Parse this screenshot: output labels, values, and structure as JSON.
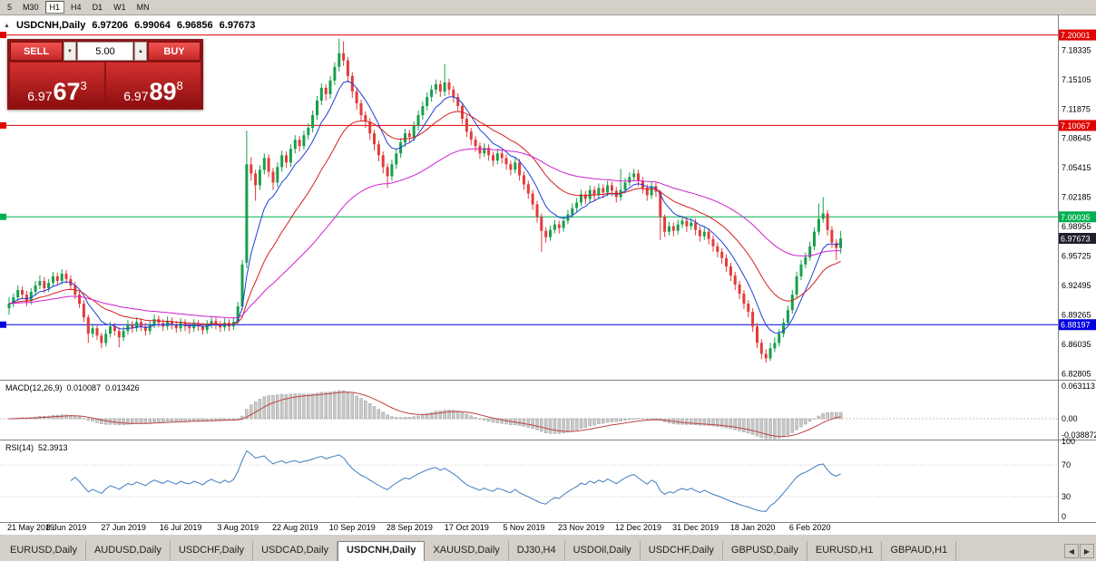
{
  "toolbar": {
    "timeframes": [
      {
        "label": "5",
        "active": false
      },
      {
        "label": "M30",
        "active": false
      },
      {
        "label": "H1",
        "active": true
      },
      {
        "label": "H4",
        "active": false
      },
      {
        "label": "D1",
        "active": false
      },
      {
        "label": "W1",
        "active": false
      },
      {
        "label": "MN",
        "active": false
      }
    ]
  },
  "icons": {
    "expand_marker": "▲",
    "volume_decrease": "▼",
    "volume_increase": "▲",
    "tab_scroll_left": "◀",
    "tab_scroll_right": "▶"
  },
  "chart_header": {
    "symbol": "USDCNH,Daily",
    "open": "6.97206",
    "high": "6.99064",
    "low": "6.96856",
    "close": "6.97673"
  },
  "trade_panel": {
    "sell_label": "SELL",
    "buy_label": "BUY",
    "volume": "5.00",
    "sell_price_big": "6.97",
    "sell_price_mid": "67",
    "sell_price_sup": "3",
    "buy_price_big": "6.97",
    "buy_price_mid": "89",
    "buy_price_sup": "8"
  },
  "indicators": {
    "macd_label": "MACD(12,26,9)",
    "macd_value1": "0.010087",
    "macd_value2": "0.013426",
    "rsi_label": "RSI(14)",
    "rsi_value": "52.3913"
  },
  "axes": {
    "price_labels": [
      "7.18335",
      "7.15105",
      "7.11875",
      "7.08645",
      "7.05415",
      "7.02185",
      "6.98955",
      "6.95725",
      "6.92495",
      "6.89265",
      "6.86035",
      "6.82805"
    ],
    "macd_labels": [
      "0.063113",
      "0.00",
      "-0.038872"
    ],
    "rsi_labels": [
      "100",
      "70",
      "30",
      "0"
    ],
    "dates": [
      "21 May 2019",
      "8 Jun 2019",
      "27 Jun 2019",
      "16 Jul 2019",
      "3 Aug 2019",
      "22 Aug 2019",
      "10 Sep 2019",
      "28 Sep 2019",
      "17 Oct 2019",
      "5 Nov 2019",
      "23 Nov 2019",
      "12 Dec 2019",
      "31 Dec 2019",
      "18 Jan 2020",
      "6 Feb 2020"
    ]
  },
  "hlines": [
    {
      "price": "7.20001",
      "value": 7.20001,
      "color": "#e00000"
    },
    {
      "price": "7.10067",
      "value": 7.10067,
      "color": "#e00000"
    },
    {
      "price": "7.00035",
      "value": 7.00035,
      "color": "#00b050"
    },
    {
      "price": "6.88197",
      "value": 6.88197,
      "color": "#0000e0"
    }
  ],
  "current_price": {
    "price": "6.97673",
    "value": 6.97673,
    "color": "#20202c"
  },
  "tabs": {
    "items": [
      {
        "label": "EURUSD,Daily",
        "active": false
      },
      {
        "label": "AUDUSD,Daily",
        "active": false
      },
      {
        "label": "USDCHF,Daily",
        "active": false
      },
      {
        "label": "USDCAD,Daily",
        "active": false
      },
      {
        "label": "USDCNH,Daily",
        "active": true
      },
      {
        "label": "XAUUSD,Daily",
        "active": false
      },
      {
        "label": "DJ30,H4",
        "active": false
      },
      {
        "label": "USDOil,Daily",
        "active": false
      },
      {
        "label": "USDCHF,Daily",
        "active": false
      },
      {
        "label": "GBPUSD,Daily",
        "active": false
      },
      {
        "label": "EURUSD,H1",
        "active": false
      },
      {
        "label": "GBPAUD,H1",
        "active": false
      }
    ]
  },
  "chart_data": {
    "type": "candlestick",
    "symbol": "USDCNH",
    "timeframe": "Daily",
    "price_range": {
      "top": 7.2185,
      "bottom": 6.8235
    },
    "x_label_every": 13,
    "bull_color": "#16a04a",
    "bear_color": "#e23b3b",
    "moving_averages": [
      {
        "period": 8,
        "type": "ema",
        "color": "#1f3fd8"
      },
      {
        "period": 21,
        "type": "ema",
        "color": "#d42020"
      },
      {
        "period": 55,
        "type": "ema",
        "color": "#d020d0"
      }
    ],
    "macd": {
      "fast": 12,
      "slow": 26,
      "signal": 9,
      "hist_color": "#c9c9c9",
      "signal_color": "#c04040"
    },
    "rsi": {
      "period": 14,
      "color": "#3f7cbf",
      "levels": [
        70,
        30
      ]
    },
    "candles": [
      [
        6.9,
        6.912,
        6.893,
        6.905
      ],
      [
        6.905,
        6.916,
        6.901,
        6.912
      ],
      [
        6.912,
        6.925,
        6.908,
        6.92
      ],
      [
        6.92,
        6.924,
        6.91,
        6.915
      ],
      [
        6.915,
        6.919,
        6.902,
        6.908
      ],
      [
        6.908,
        6.922,
        6.904,
        6.918
      ],
      [
        6.918,
        6.93,
        6.914,
        6.925
      ],
      [
        6.925,
        6.936,
        6.921,
        6.93
      ],
      [
        6.93,
        6.934,
        6.917,
        6.922
      ],
      [
        6.922,
        6.932,
        6.918,
        6.928
      ],
      [
        6.928,
        6.94,
        6.924,
        6.935
      ],
      [
        6.935,
        6.939,
        6.925,
        6.93
      ],
      [
        6.93,
        6.943,
        6.926,
        6.938
      ],
      [
        6.938,
        6.942,
        6.927,
        6.932
      ],
      [
        6.932,
        6.936,
        6.92,
        6.925
      ],
      [
        6.925,
        6.929,
        6.91,
        6.915
      ],
      [
        6.915,
        6.919,
        6.9,
        6.905
      ],
      [
        6.905,
        6.909,
        6.885,
        6.89
      ],
      [
        6.89,
        6.893,
        6.862,
        6.872
      ],
      [
        6.872,
        6.883,
        6.868,
        6.878
      ],
      [
        6.878,
        6.881,
        6.865,
        6.87
      ],
      [
        6.87,
        6.873,
        6.856,
        6.862
      ],
      [
        6.862,
        6.877,
        6.858,
        6.872
      ],
      [
        6.872,
        6.885,
        6.868,
        6.88
      ],
      [
        6.88,
        6.884,
        6.87,
        6.875
      ],
      [
        6.875,
        6.879,
        6.857,
        6.868
      ],
      [
        6.868,
        6.88,
        6.864,
        6.875
      ],
      [
        6.875,
        6.887,
        6.871,
        6.882
      ],
      [
        6.882,
        6.886,
        6.873,
        6.878
      ],
      [
        6.878,
        6.89,
        6.874,
        6.885
      ],
      [
        6.885,
        6.889,
        6.875,
        6.88
      ],
      [
        6.88,
        6.884,
        6.87,
        6.875
      ],
      [
        6.875,
        6.887,
        6.871,
        6.882
      ],
      [
        6.882,
        6.893,
        6.878,
        6.888
      ],
      [
        6.888,
        6.892,
        6.879,
        6.884
      ],
      [
        6.884,
        6.888,
        6.875,
        6.88
      ],
      [
        6.88,
        6.891,
        6.876,
        6.886
      ],
      [
        6.886,
        6.89,
        6.877,
        6.882
      ],
      [
        6.882,
        6.886,
        6.873,
        6.878
      ],
      [
        6.878,
        6.889,
        6.874,
        6.884
      ],
      [
        6.884,
        6.888,
        6.875,
        6.88
      ],
      [
        6.88,
        6.884,
        6.872,
        6.878
      ],
      [
        6.878,
        6.888,
        6.874,
        6.883
      ],
      [
        6.883,
        6.887,
        6.875,
        6.88
      ],
      [
        6.88,
        6.884,
        6.871,
        6.876
      ],
      [
        6.876,
        6.887,
        6.872,
        6.882
      ],
      [
        6.882,
        6.891,
        6.878,
        6.886
      ],
      [
        6.886,
        6.89,
        6.877,
        6.882
      ],
      [
        6.882,
        6.886,
        6.874,
        6.879
      ],
      [
        6.879,
        6.889,
        6.875,
        6.884
      ],
      [
        6.884,
        6.888,
        6.875,
        6.88
      ],
      [
        6.88,
        6.89,
        6.876,
        6.885
      ],
      [
        6.885,
        6.907,
        6.882,
        6.902
      ],
      [
        6.902,
        6.953,
        6.898,
        6.948
      ],
      [
        6.95,
        7.095,
        6.944,
        7.058
      ],
      [
        7.058,
        7.066,
        7.04,
        7.048
      ],
      [
        7.048,
        7.052,
        7.018,
        7.035
      ],
      [
        7.035,
        7.057,
        7.03,
        7.052
      ],
      [
        7.052,
        7.07,
        7.047,
        7.065
      ],
      [
        7.065,
        7.069,
        7.044,
        7.05
      ],
      [
        7.05,
        7.054,
        7.03,
        7.038
      ],
      [
        7.038,
        7.06,
        7.033,
        7.055
      ],
      [
        7.055,
        7.073,
        7.05,
        7.068
      ],
      [
        7.068,
        7.072,
        7.054,
        7.06
      ],
      [
        7.06,
        7.08,
        7.055,
        7.075
      ],
      [
        7.075,
        7.09,
        7.07,
        7.085
      ],
      [
        7.085,
        7.089,
        7.072,
        7.078
      ],
      [
        7.078,
        7.095,
        7.074,
        7.09
      ],
      [
        7.09,
        7.103,
        7.085,
        7.098
      ],
      [
        7.098,
        7.117,
        7.093,
        7.112
      ],
      [
        7.112,
        7.133,
        7.107,
        7.128
      ],
      [
        7.128,
        7.147,
        7.123,
        7.142
      ],
      [
        7.142,
        7.146,
        7.128,
        7.135
      ],
      [
        7.135,
        7.155,
        7.13,
        7.15
      ],
      [
        7.15,
        7.17,
        7.145,
        7.165
      ],
      [
        7.165,
        7.196,
        7.16,
        7.18
      ],
      [
        7.18,
        7.193,
        7.166,
        7.172
      ],
      [
        7.172,
        7.176,
        7.148,
        7.155
      ],
      [
        7.155,
        7.159,
        7.131,
        7.138
      ],
      [
        7.138,
        7.142,
        7.118,
        7.125
      ],
      [
        7.125,
        7.129,
        7.105,
        7.112
      ],
      [
        7.112,
        7.116,
        7.098,
        7.105
      ],
      [
        7.105,
        7.109,
        7.085,
        7.092
      ],
      [
        7.092,
        7.096,
        7.073,
        7.08
      ],
      [
        7.08,
        7.084,
        7.061,
        7.068
      ],
      [
        7.068,
        7.072,
        7.048,
        7.055
      ],
      [
        7.055,
        7.059,
        7.032,
        7.045
      ],
      [
        7.045,
        7.063,
        7.04,
        7.058
      ],
      [
        7.058,
        7.075,
        7.053,
        7.07
      ],
      [
        7.07,
        7.087,
        7.065,
        7.082
      ],
      [
        7.082,
        7.097,
        7.077,
        7.092
      ],
      [
        7.092,
        7.096,
        7.082,
        7.088
      ],
      [
        7.088,
        7.105,
        7.083,
        7.1
      ],
      [
        7.1,
        7.117,
        7.095,
        7.112
      ],
      [
        7.112,
        7.127,
        7.107,
        7.122
      ],
      [
        7.122,
        7.137,
        7.117,
        7.132
      ],
      [
        7.132,
        7.145,
        7.127,
        7.14
      ],
      [
        7.14,
        7.151,
        7.135,
        7.146
      ],
      [
        7.146,
        7.15,
        7.132,
        7.138
      ],
      [
        7.138,
        7.168,
        7.133,
        7.148
      ],
      [
        7.148,
        7.152,
        7.134,
        7.14
      ],
      [
        7.14,
        7.144,
        7.126,
        7.132
      ],
      [
        7.132,
        7.136,
        7.116,
        7.122
      ],
      [
        7.122,
        7.126,
        7.102,
        7.108
      ],
      [
        7.108,
        7.112,
        7.088,
        7.094
      ],
      [
        7.094,
        7.098,
        7.079,
        7.085
      ],
      [
        7.085,
        7.089,
        7.072,
        7.078
      ],
      [
        7.078,
        7.082,
        7.064,
        7.07
      ],
      [
        7.07,
        7.081,
        7.066,
        7.076
      ],
      [
        7.076,
        7.08,
        7.062,
        7.068
      ],
      [
        7.068,
        7.072,
        7.056,
        7.062
      ],
      [
        7.062,
        7.075,
        7.058,
        7.07
      ],
      [
        7.07,
        7.074,
        7.059,
        7.065
      ],
      [
        7.065,
        7.069,
        7.052,
        7.058
      ],
      [
        7.058,
        7.062,
        7.046,
        7.052
      ],
      [
        7.052,
        7.065,
        7.048,
        7.06
      ],
      [
        7.06,
        7.064,
        7.04,
        7.046
      ],
      [
        7.046,
        7.05,
        7.03,
        7.036
      ],
      [
        7.036,
        7.04,
        7.02,
        7.026
      ],
      [
        7.026,
        7.03,
        7.008,
        7.014
      ],
      [
        7.014,
        7.018,
        6.994,
        7.0
      ],
      [
        7.0,
        7.004,
        6.962,
        6.985
      ],
      [
        6.985,
        6.989,
        6.972,
        6.978
      ],
      [
        6.978,
        6.991,
        6.974,
        6.986
      ],
      [
        6.986,
        6.997,
        6.982,
        6.992
      ],
      [
        6.992,
        6.996,
        6.982,
        6.988
      ],
      [
        6.988,
        7.001,
        6.984,
        6.996
      ],
      [
        6.996,
        7.008,
        6.992,
        7.003
      ],
      [
        7.003,
        7.015,
        6.999,
        7.01
      ],
      [
        7.01,
        7.021,
        7.006,
        7.016
      ],
      [
        7.016,
        7.03,
        7.012,
        7.025
      ],
      [
        7.025,
        7.029,
        7.014,
        7.02
      ],
      [
        7.02,
        7.035,
        7.016,
        7.03
      ],
      [
        7.03,
        7.034,
        7.018,
        7.024
      ],
      [
        7.024,
        7.037,
        7.02,
        7.032
      ],
      [
        7.032,
        7.036,
        7.021,
        7.027
      ],
      [
        7.027,
        7.04,
        7.023,
        7.035
      ],
      [
        7.035,
        7.039,
        7.023,
        7.029
      ],
      [
        7.029,
        7.033,
        7.016,
        7.022
      ],
      [
        7.022,
        7.053,
        7.018,
        7.03
      ],
      [
        7.03,
        7.043,
        7.026,
        7.038
      ],
      [
        7.038,
        7.049,
        7.034,
        7.044
      ],
      [
        7.044,
        7.053,
        7.04,
        7.048
      ],
      [
        7.048,
        7.052,
        7.034,
        7.04
      ],
      [
        7.04,
        7.044,
        7.026,
        7.032
      ],
      [
        7.032,
        7.036,
        7.018,
        7.024
      ],
      [
        7.024,
        7.039,
        7.02,
        7.034
      ],
      [
        7.034,
        7.038,
        7.022,
        7.028
      ],
      [
        7.028,
        7.03,
        6.975,
        7.0
      ],
      [
        7.0,
        7.003,
        6.978,
        6.984
      ],
      [
        6.984,
        6.995,
        6.98,
        6.99
      ],
      [
        6.99,
        6.994,
        6.979,
        6.985
      ],
      [
        6.985,
        6.997,
        6.981,
        6.992
      ],
      [
        6.992,
        7.001,
        6.988,
        6.996
      ],
      [
        6.996,
        7.0,
        6.984,
        6.99
      ],
      [
        6.99,
        6.999,
        6.986,
        6.994
      ],
      [
        6.994,
        6.998,
        6.98,
        6.986
      ],
      [
        6.986,
        6.99,
        6.973,
        6.979
      ],
      [
        6.979,
        6.989,
        6.975,
        6.984
      ],
      [
        6.984,
        6.988,
        6.97,
        6.976
      ],
      [
        6.976,
        6.98,
        6.962,
        6.968
      ],
      [
        6.968,
        6.972,
        6.956,
        6.962
      ],
      [
        6.962,
        6.966,
        6.949,
        6.955
      ],
      [
        6.955,
        6.959,
        6.94,
        6.946
      ],
      [
        6.946,
        6.95,
        6.93,
        6.936
      ],
      [
        6.936,
        6.94,
        6.92,
        6.926
      ],
      [
        6.926,
        6.93,
        6.91,
        6.916
      ],
      [
        6.916,
        6.92,
        6.899,
        6.905
      ],
      [
        6.905,
        6.909,
        6.89,
        6.896
      ],
      [
        6.896,
        6.9,
        6.874,
        6.88
      ],
      [
        6.88,
        6.884,
        6.856,
        6.862
      ],
      [
        6.862,
        6.866,
        6.844,
        6.85
      ],
      [
        6.85,
        6.855,
        6.84,
        6.845
      ],
      [
        6.845,
        6.862,
        6.842,
        6.856
      ],
      [
        6.856,
        6.868,
        6.852,
        6.862
      ],
      [
        6.862,
        6.877,
        6.858,
        6.872
      ],
      [
        6.872,
        6.889,
        6.868,
        6.884
      ],
      [
        6.884,
        6.903,
        6.88,
        6.898
      ],
      [
        6.898,
        6.92,
        6.894,
        6.915
      ],
      [
        6.915,
        6.94,
        6.911,
        6.935
      ],
      [
        6.935,
        6.953,
        6.931,
        6.948
      ],
      [
        6.948,
        6.961,
        6.944,
        6.956
      ],
      [
        6.956,
        6.973,
        6.952,
        6.968
      ],
      [
        6.968,
        6.989,
        6.964,
        6.984
      ],
      [
        6.984,
        7.015,
        6.98,
        6.998
      ],
      [
        6.998,
        7.022,
        6.994,
        7.004
      ],
      [
        7.004,
        7.008,
        6.98,
        6.986
      ],
      [
        6.986,
        6.99,
        6.966,
        6.972
      ],
      [
        6.972,
        6.976,
        6.953,
        6.966
      ],
      [
        6.966,
        6.985,
        6.96,
        6.9767
      ]
    ]
  }
}
